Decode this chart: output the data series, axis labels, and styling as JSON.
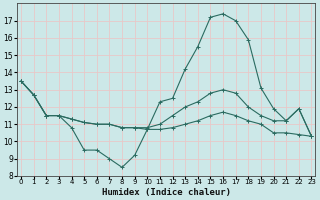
{
  "xlabel": "Humidex (Indice chaleur)",
  "bg_color": "#cce8e8",
  "grid_color": "#e8c8c8",
  "line_color": "#2a6b60",
  "line1_y": [
    13.5,
    12.7,
    11.5,
    11.5,
    10.8,
    9.5,
    9.5,
    9.0,
    8.5,
    9.2,
    10.7,
    12.3,
    12.5,
    14.2,
    15.5,
    17.2,
    17.4,
    17.0,
    15.9,
    13.1,
    11.9,
    11.2,
    11.9,
    10.3
  ],
  "line2_y": [
    13.5,
    12.7,
    11.5,
    11.5,
    11.3,
    11.1,
    11.0,
    11.0,
    10.8,
    10.8,
    10.8,
    11.0,
    11.5,
    12.0,
    12.3,
    12.8,
    13.0,
    12.8,
    12.0,
    11.5,
    11.2,
    11.2,
    11.9,
    10.3
  ],
  "line3_y": [
    13.5,
    12.7,
    11.5,
    11.5,
    11.3,
    11.1,
    11.0,
    11.0,
    10.8,
    10.8,
    10.7,
    10.7,
    10.8,
    11.0,
    11.2,
    11.5,
    11.7,
    11.5,
    11.2,
    11.0,
    10.5,
    10.5,
    10.4,
    10.3
  ],
  "ylim": [
    8,
    18
  ],
  "xlim": [
    0,
    23
  ],
  "yticks": [
    8,
    9,
    10,
    11,
    12,
    13,
    14,
    15,
    16,
    17
  ],
  "xticks": [
    0,
    1,
    2,
    3,
    4,
    5,
    6,
    7,
    8,
    9,
    10,
    11,
    12,
    13,
    14,
    15,
    16,
    17,
    18,
    19,
    20,
    21,
    22,
    23
  ]
}
